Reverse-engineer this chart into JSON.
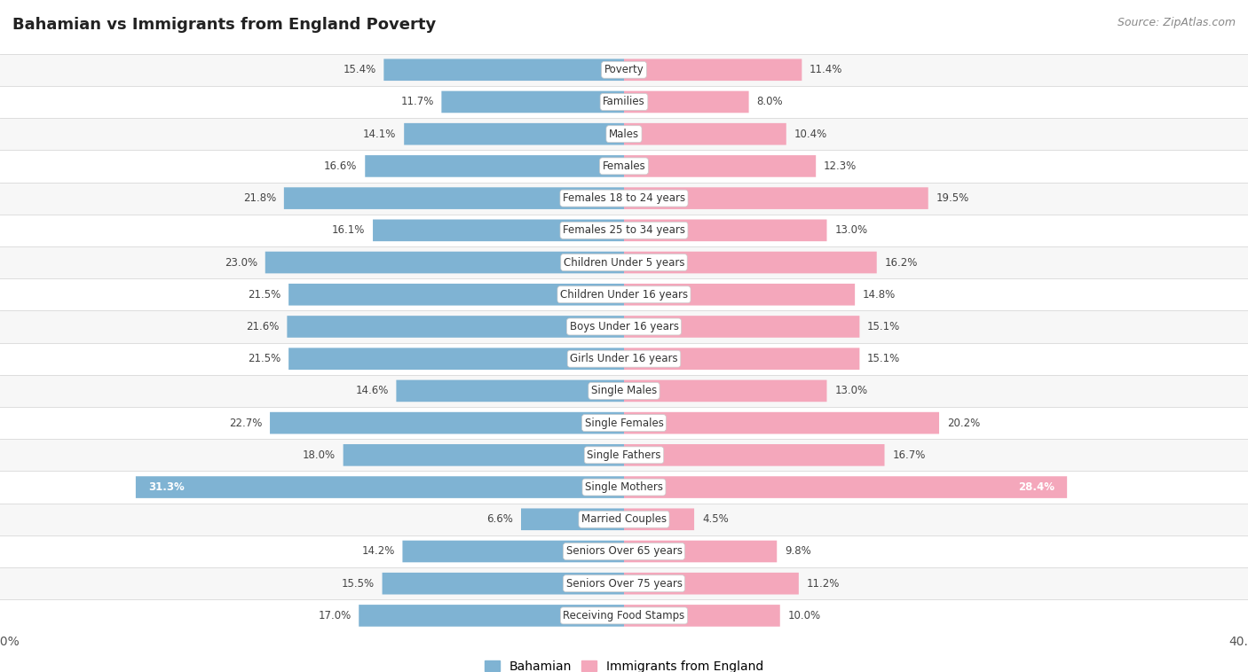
{
  "title": "Bahamian vs Immigrants from England Poverty",
  "source": "Source: ZipAtlas.com",
  "categories": [
    "Poverty",
    "Families",
    "Males",
    "Females",
    "Females 18 to 24 years",
    "Females 25 to 34 years",
    "Children Under 5 years",
    "Children Under 16 years",
    "Boys Under 16 years",
    "Girls Under 16 years",
    "Single Males",
    "Single Females",
    "Single Fathers",
    "Single Mothers",
    "Married Couples",
    "Seniors Over 65 years",
    "Seniors Over 75 years",
    "Receiving Food Stamps"
  ],
  "bahamian": [
    15.4,
    11.7,
    14.1,
    16.6,
    21.8,
    16.1,
    23.0,
    21.5,
    21.6,
    21.5,
    14.6,
    22.7,
    18.0,
    31.3,
    6.6,
    14.2,
    15.5,
    17.0
  ],
  "england": [
    11.4,
    8.0,
    10.4,
    12.3,
    19.5,
    13.0,
    16.2,
    14.8,
    15.1,
    15.1,
    13.0,
    20.2,
    16.7,
    28.4,
    4.5,
    9.8,
    11.2,
    10.0
  ],
  "blue_color": "#7fb3d3",
  "pink_color": "#f4a7bb",
  "axis_max": 40.0,
  "legend_bahamian": "Bahamian",
  "legend_england": "Immigrants from England",
  "row_colors": [
    "#f7f7f7",
    "#ffffff"
  ]
}
